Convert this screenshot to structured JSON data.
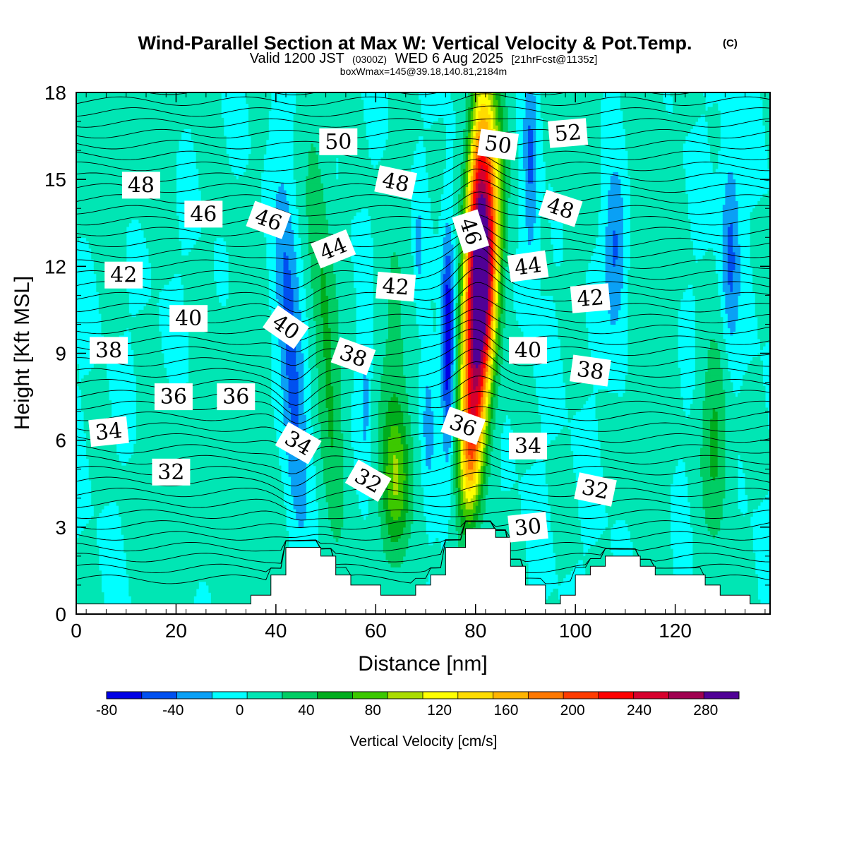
{
  "title": {
    "main": "Wind-Parallel Section at Max W: Vertical Velocity & Pot.Temp.",
    "copyright": "(C)",
    "line2_a": "Valid 1200 JST",
    "line2_b": "(0300Z)",
    "line2_c": "WED 6 Aug 2025",
    "line2_d": "[21hrFcst@1135z]",
    "line3": "boxWmax=145@39.18,140.81,2184m"
  },
  "chart_data": {
    "type": "heatmap",
    "title": "Wind-Parallel Section at Max W: Vertical Velocity & Pot.Temp.",
    "xlabel": "Distance [nm]",
    "ylabel": "Height [Kft MSL]",
    "xlim": [
      0,
      139
    ],
    "ylim": [
      0,
      18
    ],
    "xticks": [
      0,
      20,
      40,
      60,
      80,
      100,
      120
    ],
    "yticks": [
      0,
      3,
      6,
      9,
      12,
      15,
      18
    ],
    "colorbar": {
      "label": "Vertical Velocity [cm/s]",
      "min": -80,
      "max": 300,
      "step": 20,
      "tick_labels": [
        "-80",
        "-40",
        "0",
        "40",
        "80",
        "120",
        "160",
        "200",
        "240",
        "280"
      ],
      "tick_values": [
        -80,
        -40,
        0,
        40,
        80,
        120,
        160,
        200,
        240,
        280
      ],
      "colors": [
        "#0000e6",
        "#0050f0",
        "#0aa0f5",
        "#00ffff",
        "#00e6b4",
        "#00cd64",
        "#00ad1e",
        "#3cc800",
        "#aadc00",
        "#ffff00",
        "#ffdc00",
        "#ffb400",
        "#ff7800",
        "#ff3c00",
        "#ff0000",
        "#d7002d",
        "#a00050",
        "#500096"
      ]
    },
    "updraft_peak_w": 145,
    "terrain": [
      [
        0,
        0.35
      ],
      [
        35,
        0.35
      ],
      [
        35,
        0.65
      ],
      [
        39,
        0.65
      ],
      [
        39,
        1.35
      ],
      [
        42,
        1.35
      ],
      [
        42,
        2.3
      ],
      [
        49,
        2.3
      ],
      [
        49,
        2.0
      ],
      [
        52,
        2.0
      ],
      [
        52,
        1.35
      ],
      [
        55,
        1.35
      ],
      [
        55,
        1.0
      ],
      [
        61,
        1.0
      ],
      [
        61,
        0.65
      ],
      [
        68,
        0.65
      ],
      [
        68,
        1.0
      ],
      [
        71,
        1.0
      ],
      [
        71,
        1.35
      ],
      [
        74,
        1.35
      ],
      [
        74,
        2.3
      ],
      [
        78,
        2.3
      ],
      [
        78,
        2.95
      ],
      [
        84,
        2.95
      ],
      [
        84,
        2.65
      ],
      [
        87,
        2.65
      ],
      [
        87,
        1.65
      ],
      [
        90,
        1.65
      ],
      [
        90,
        1.0
      ],
      [
        94,
        1.0
      ],
      [
        94,
        0.35
      ],
      [
        97,
        0.35
      ],
      [
        97,
        0.65
      ],
      [
        100,
        0.65
      ],
      [
        100,
        1.35
      ],
      [
        103,
        1.35
      ],
      [
        103,
        1.65
      ],
      [
        106,
        1.65
      ],
      [
        106,
        2.0
      ],
      [
        113,
        2.0
      ],
      [
        113,
        1.65
      ],
      [
        116,
        1.65
      ],
      [
        116,
        1.35
      ],
      [
        126,
        1.35
      ],
      [
        126,
        1.0
      ],
      [
        129,
        1.0
      ],
      [
        129,
        0.65
      ],
      [
        135,
        0.65
      ],
      [
        135,
        0.35
      ],
      [
        139,
        0.35
      ]
    ],
    "w_features": [
      {
        "x": 81,
        "y": 10.8,
        "sx": 2.2,
        "sy": 3.6,
        "w": 300,
        "tilt": 0.32
      },
      {
        "x": 80.5,
        "y": 15.2,
        "sx": 1.7,
        "sy": 2.8,
        "w": 120,
        "tilt": 0.25
      },
      {
        "x": 79,
        "y": 5.5,
        "sx": 1.5,
        "sy": 1.6,
        "w": 80,
        "tilt": 0.2
      },
      {
        "x": 74.5,
        "y": 9.4,
        "sx": 0.9,
        "sy": 2.6,
        "w": -85,
        "tilt": 0.0
      },
      {
        "x": 70.5,
        "y": 6.5,
        "sx": 1.0,
        "sy": 2.0,
        "w": -30,
        "tilt": 0.0
      },
      {
        "x": 68.5,
        "y": 12.5,
        "sx": 0.7,
        "sy": 1.5,
        "w": -25,
        "tilt": 0.0
      },
      {
        "x": 43,
        "y": 9.0,
        "sx": 1.7,
        "sy": 4.0,
        "w": -55,
        "tilt": -0.3
      },
      {
        "x": 50,
        "y": 9.5,
        "sx": 1.9,
        "sy": 5.5,
        "w": 45,
        "tilt": -0.35
      },
      {
        "x": 64,
        "y": 4.5,
        "sx": 2.0,
        "sy": 1.8,
        "w": 70,
        "tilt": 0.0
      },
      {
        "x": 64,
        "y": 8.5,
        "sx": 2.5,
        "sy": 4.0,
        "w": 25,
        "tilt": 0.0
      },
      {
        "x": 58,
        "y": 7.5,
        "sx": 0.8,
        "sy": 2.0,
        "w": -25,
        "tilt": 0.0
      },
      {
        "x": 91,
        "y": 15.5,
        "sx": 1.0,
        "sy": 2.5,
        "w": -45,
        "tilt": 0.0
      },
      {
        "x": 108,
        "y": 12.5,
        "sx": 1.5,
        "sy": 2.0,
        "w": -45,
        "tilt": 0.0
      },
      {
        "x": 131,
        "y": 12.5,
        "sx": 1.3,
        "sy": 2.5,
        "w": -45,
        "tilt": 0.0
      },
      {
        "x": 128,
        "y": 6.0,
        "sx": 2.0,
        "sy": 2.5,
        "w": 45,
        "tilt": 0.0
      },
      {
        "x": 115,
        "y": 10.0,
        "sx": 2.5,
        "sy": 6.0,
        "w": 18,
        "tilt": 0.0
      },
      {
        "x": 34,
        "y": 5.0,
        "sx": 4.0,
        "sy": 5.0,
        "w": 15,
        "tilt": 0.0
      },
      {
        "x": 10,
        "y": 16.5,
        "sx": 6.0,
        "sy": 2.0,
        "w": 12,
        "tilt": 0.0
      },
      {
        "x": 100,
        "y": 16.0,
        "sx": 3.0,
        "sy": 2.0,
        "w": 15,
        "tilt": 0.0
      },
      {
        "x": 20,
        "y": 4.0,
        "sx": 5.0,
        "sy": 2.0,
        "w": 12,
        "tilt": 0.0
      }
    ],
    "theta_contour_labels": [
      {
        "text": "52",
        "x": 98.5,
        "y": 16.6,
        "rot": -5
      },
      {
        "text": "50",
        "x": 52.5,
        "y": 16.3,
        "rot": 0
      },
      {
        "text": "50",
        "x": 84.5,
        "y": 16.2,
        "rot": 8
      },
      {
        "text": "48",
        "x": 13,
        "y": 14.8,
        "rot": 0
      },
      {
        "text": "48",
        "x": 64,
        "y": 14.9,
        "rot": 12
      },
      {
        "text": "48",
        "x": 97,
        "y": 14.0,
        "rot": 18
      },
      {
        "text": "46",
        "x": 25.5,
        "y": 13.8,
        "rot": 0
      },
      {
        "text": "46",
        "x": 38.5,
        "y": 13.6,
        "rot": 20
      },
      {
        "text": "46",
        "x": 79,
        "y": 13.2,
        "rot": 72
      },
      {
        "text": "44",
        "x": 51.5,
        "y": 12.6,
        "rot": -22
      },
      {
        "text": "44",
        "x": 90.5,
        "y": 12.0,
        "rot": -8
      },
      {
        "text": "42",
        "x": 9.5,
        "y": 11.7,
        "rot": 0
      },
      {
        "text": "42",
        "x": 64,
        "y": 11.3,
        "rot": 5
      },
      {
        "text": "42",
        "x": 103,
        "y": 10.9,
        "rot": -5
      },
      {
        "text": "40",
        "x": 22.5,
        "y": 10.2,
        "rot": 0
      },
      {
        "text": "40",
        "x": 42,
        "y": 9.9,
        "rot": 35
      },
      {
        "text": "40",
        "x": 90.5,
        "y": 9.1,
        "rot": 0
      },
      {
        "text": "38",
        "x": 6.5,
        "y": 9.1,
        "rot": 0
      },
      {
        "text": "38",
        "x": 55.5,
        "y": 8.9,
        "rot": 20
      },
      {
        "text": "38",
        "x": 103,
        "y": 8.4,
        "rot": 8
      },
      {
        "text": "36",
        "x": 19.5,
        "y": 7.5,
        "rot": 0
      },
      {
        "text": "36",
        "x": 32,
        "y": 7.5,
        "rot": 0
      },
      {
        "text": "36",
        "x": 77.5,
        "y": 6.5,
        "rot": 20
      },
      {
        "text": "34",
        "x": 6.5,
        "y": 6.3,
        "rot": -6
      },
      {
        "text": "34",
        "x": 44.5,
        "y": 5.9,
        "rot": 30
      },
      {
        "text": "34",
        "x": 90.5,
        "y": 5.8,
        "rot": 0
      },
      {
        "text": "32",
        "x": 19,
        "y": 4.9,
        "rot": 0
      },
      {
        "text": "32",
        "x": 58.5,
        "y": 4.6,
        "rot": 30
      },
      {
        "text": "32",
        "x": 104,
        "y": 4.3,
        "rot": 12
      },
      {
        "text": "30",
        "x": 90.5,
        "y": 3.0,
        "rot": -6
      }
    ]
  }
}
